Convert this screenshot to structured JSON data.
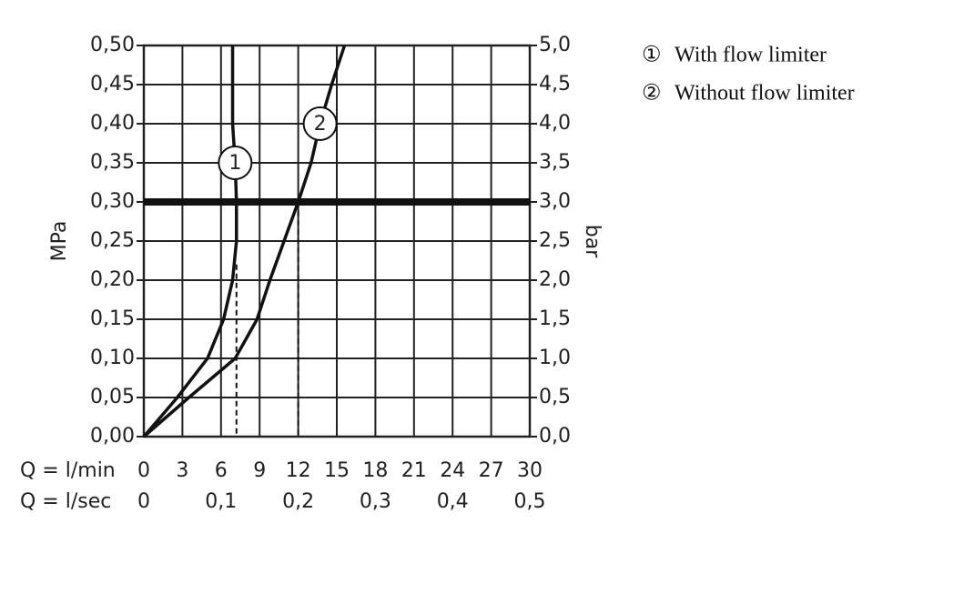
{
  "chart_data": {
    "type": "line",
    "y_label": "MPa",
    "y2_label": "bar",
    "x_label": "Q = l/min",
    "x2_label": "Q = l/sec",
    "xlim": [
      0,
      30
    ],
    "xticks": [
      0,
      3,
      6,
      9,
      12,
      15,
      18,
      21,
      24,
      27,
      30
    ],
    "x2lim": [
      0,
      0.5
    ],
    "x2ticks": [
      {
        "value": 0,
        "label": "0"
      },
      {
        "value": 0.1,
        "label": "0,1"
      },
      {
        "value": 0.2,
        "label": "0,2"
      },
      {
        "value": 0.3,
        "label": "0,3"
      },
      {
        "value": 0.4,
        "label": "0,4"
      },
      {
        "value": 0.5,
        "label": "0,5"
      }
    ],
    "ylim": [
      0,
      0.5
    ],
    "yticks": [
      {
        "value": 0,
        "label": "0,00"
      },
      {
        "value": 0.05,
        "label": "0,05"
      },
      {
        "value": 0.1,
        "label": "0,10"
      },
      {
        "value": 0.15,
        "label": "0,15"
      },
      {
        "value": 0.2,
        "label": "0,20"
      },
      {
        "value": 0.25,
        "label": "0,25"
      },
      {
        "value": 0.3,
        "label": "0,30"
      },
      {
        "value": 0.35,
        "label": "0,35"
      },
      {
        "value": 0.4,
        "label": "0,40"
      },
      {
        "value": 0.45,
        "label": "0,45"
      },
      {
        "value": 0.5,
        "label": "0,50"
      }
    ],
    "y2lim": [
      0,
      5
    ],
    "y2ticks": [
      {
        "value": 0,
        "label": "0,0"
      },
      {
        "value": 0.5,
        "label": "0,5"
      },
      {
        "value": 1,
        "label": "1,0"
      },
      {
        "value": 1.5,
        "label": "1,5"
      },
      {
        "value": 2,
        "label": "2,0"
      },
      {
        "value": 2.5,
        "label": "2,5"
      },
      {
        "value": 3,
        "label": "3,0"
      },
      {
        "value": 3.5,
        "label": "3,5"
      },
      {
        "value": 4,
        "label": "4,0"
      },
      {
        "value": 4.5,
        "label": "4,5"
      },
      {
        "value": 5,
        "label": "5,0"
      }
    ],
    "grid": true,
    "reference_line": 0.3,
    "drop_lines": [
      {
        "x": 7.2,
        "y": 0.22
      },
      {
        "x": 12,
        "y": 0.3
      }
    ],
    "series": [
      {
        "name": "With flow limiter",
        "marker_label": "1",
        "legend_symbol": "①",
        "color": "#111111",
        "x": [
          0,
          2.6,
          4.95,
          6.2,
          6.9,
          7.2,
          7.2,
          7.1,
          6.9,
          6.9,
          6.9
        ],
        "values": [
          0,
          0.05,
          0.1,
          0.15,
          0.2,
          0.25,
          0.3,
          0.35,
          0.4,
          0.45,
          0.5
        ]
      },
      {
        "name": "Without flow limiter",
        "marker_label": "2",
        "legend_symbol": "②",
        "color": "#111111",
        "x": [
          0,
          3.5,
          7.1,
          8.8,
          9.8,
          10.9,
          12,
          13,
          13.7,
          14.6,
          15.6
        ],
        "values": [
          0,
          0.05,
          0.1,
          0.15,
          0.2,
          0.25,
          0.3,
          0.35,
          0.4,
          0.45,
          0.5
        ]
      }
    ]
  }
}
